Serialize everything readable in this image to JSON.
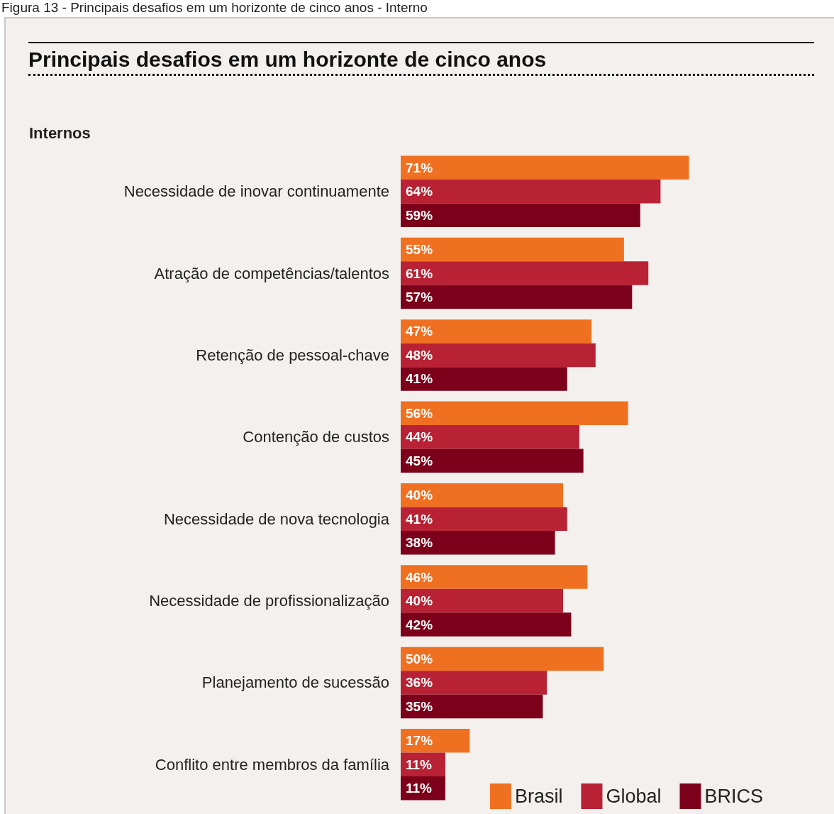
{
  "chart_data": {
    "type": "bar",
    "orientation": "horizontal",
    "title": "Principais desafios em um horizonte de cinco anos",
    "subtitle": "Internos",
    "annotations": [
      "Figura 13 - Principais desafios em um horizonte de cinco anos - Interno"
    ],
    "categories": [
      "Necessidade de inovar continuamente",
      "Atração de competências/talentos",
      "Retenção de pessoal-chave",
      "Contenção de custos",
      "Necessidade de nova tecnologia",
      "Necessidade de profissionalização",
      "Planejamento de sucessão",
      "Conflito entre membros da família"
    ],
    "series": [
      {
        "name": "Brasil",
        "color": "#f07022",
        "values": [
          71,
          55,
          47,
          56,
          40,
          46,
          50,
          17
        ],
        "value_labels": [
          "71%",
          "55%",
          "47%",
          "56%",
          "40%",
          "46%",
          "50%",
          "17%"
        ]
      },
      {
        "name": "Global",
        "color": "#b82234",
        "values": [
          64,
          61,
          48,
          44,
          41,
          40,
          36,
          11
        ],
        "value_labels": [
          "64%",
          "61%",
          "48%",
          "44%",
          "41%",
          "40%",
          "36%",
          "11%"
        ]
      },
      {
        "name": "BRICS",
        "color": "#7c0019",
        "values": [
          59,
          57,
          41,
          45,
          38,
          42,
          35,
          11
        ],
        "value_labels": [
          "59%",
          "57%",
          "41%",
          "45%",
          "38%",
          "42%",
          "35%",
          "11%"
        ]
      }
    ],
    "legend": "bottom right"
  }
}
